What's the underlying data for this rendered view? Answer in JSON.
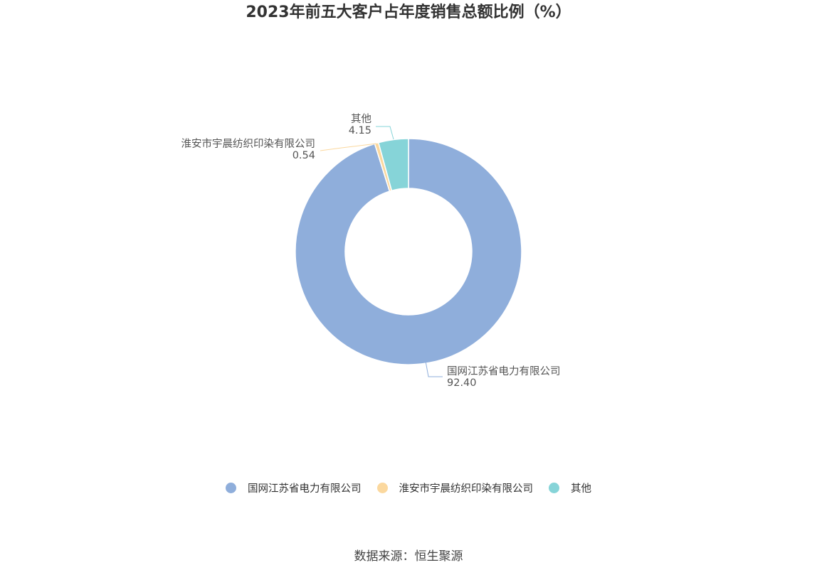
{
  "chart_data": {
    "type": "pie",
    "title": "2023年前五大客户占年度销售总额比例（%）",
    "slices": [
      {
        "label": "国网江苏省电力有限公司",
        "value": 92.4,
        "value_text": "92.40",
        "color": "#8FAEDB"
      },
      {
        "label": "淮安市宇晨纺织印染有限公司",
        "value": 0.54,
        "value_text": "0.54",
        "color": "#FBD89E"
      },
      {
        "label": "其他",
        "value": 4.15,
        "value_text": "4.15",
        "color": "#86D4D8"
      }
    ],
    "legend_position": "bottom"
  },
  "source": "数据来源：恒生聚源"
}
